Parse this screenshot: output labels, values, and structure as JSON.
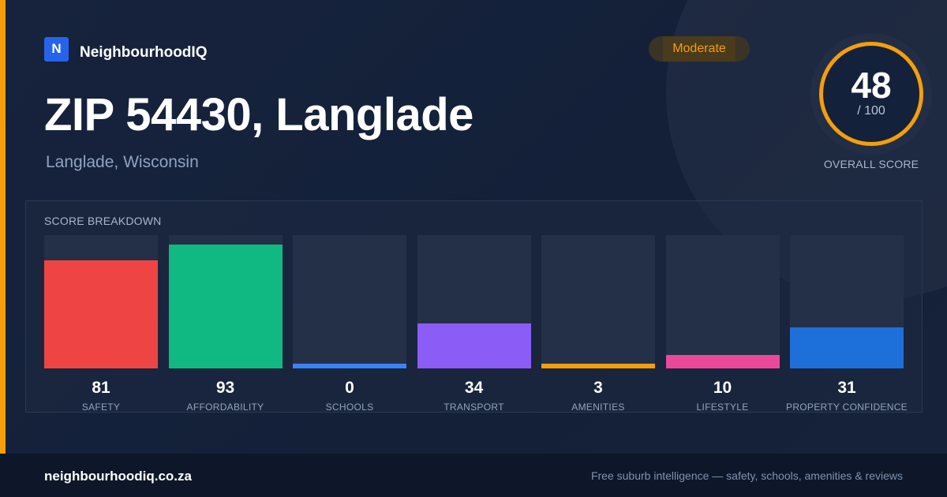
{
  "brand": {
    "logo_letter": "N",
    "name": "NeighbourhoodIQ"
  },
  "header": {
    "title": "ZIP 54430, Langlade",
    "subtitle": "Langlade, Wisconsin"
  },
  "badge": {
    "label": "Moderate",
    "color": "#f59e0b"
  },
  "overall": {
    "score": "48",
    "max": "/ 100",
    "label": "OVERALL SCORE",
    "ring_color": "#f59e0b"
  },
  "breakdown": {
    "title": "SCORE BREAKDOWN"
  },
  "chart_data": {
    "type": "bar",
    "title": "SCORE BREAKDOWN",
    "ylim": [
      0,
      100
    ],
    "categories": [
      "SAFETY",
      "AFFORDABILITY",
      "SCHOOLS",
      "TRANSPORT",
      "AMENITIES",
      "LIFESTYLE",
      "PROPERTY CONFIDENCE"
    ],
    "values": [
      81,
      93,
      0,
      34,
      3,
      10,
      31
    ],
    "colors": [
      "#ef4444",
      "#10b981",
      "#3b82f6",
      "#8b5cf6",
      "#f59e0b",
      "#ec4899",
      "#1d6fd9"
    ]
  },
  "footer": {
    "domain": "neighbourhoodiq.co.za",
    "tagline": "Free suburb intelligence — safety, schools, amenities & reviews"
  }
}
